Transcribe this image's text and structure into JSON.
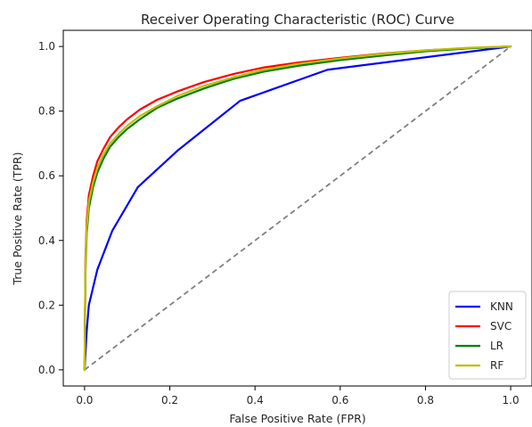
{
  "chart_data": {
    "type": "line",
    "title": "Receiver Operating Characteristic (ROC) Curve",
    "xlabel": "False Positive Rate (FPR)",
    "ylabel": "True Positive Rate (TPR)",
    "xlim": [
      -0.05,
      1.05
    ],
    "ylim": [
      -0.05,
      1.05
    ],
    "xticks": [
      0.0,
      0.2,
      0.4,
      0.6,
      0.8,
      1.0
    ],
    "yticks": [
      0.0,
      0.2,
      0.4,
      0.6,
      0.8,
      1.0
    ],
    "xtick_labels": [
      "0.0",
      "0.2",
      "0.4",
      "0.6",
      "0.8",
      "1.0"
    ],
    "ytick_labels": [
      "0.0",
      "0.2",
      "0.4",
      "0.6",
      "0.8",
      "1.0"
    ],
    "grid": false,
    "legend_position": "lower-right",
    "diagonal": {
      "x": [
        0,
        1
      ],
      "y": [
        0,
        1
      ],
      "color": "#808080",
      "style": "dashed"
    },
    "series": [
      {
        "name": "KNN",
        "color": "#0000ff",
        "x": [
          0,
          0.005,
          0.01,
          0.03,
          0.065,
          0.125,
          0.22,
          0.365,
          0.57,
          1.0
        ],
        "y": [
          0,
          0.12,
          0.2,
          0.31,
          0.43,
          0.565,
          0.68,
          0.832,
          0.928,
          1.0
        ]
      },
      {
        "name": "SVC",
        "color": "#ff0000",
        "x": [
          0,
          0.002,
          0.005,
          0.01,
          0.02,
          0.03,
          0.045,
          0.06,
          0.08,
          0.1,
          0.13,
          0.17,
          0.22,
          0.28,
          0.35,
          0.42,
          0.5,
          0.6,
          0.7,
          0.8,
          0.9,
          1.0
        ],
        "y": [
          0,
          0.34,
          0.46,
          0.54,
          0.6,
          0.645,
          0.685,
          0.72,
          0.75,
          0.775,
          0.805,
          0.835,
          0.862,
          0.89,
          0.915,
          0.935,
          0.95,
          0.965,
          0.978,
          0.988,
          0.995,
          1.0
        ]
      },
      {
        "name": "LR",
        "color": "#008000",
        "x": [
          0,
          0.002,
          0.005,
          0.01,
          0.02,
          0.03,
          0.045,
          0.06,
          0.08,
          0.1,
          0.13,
          0.17,
          0.22,
          0.28,
          0.35,
          0.42,
          0.5,
          0.6,
          0.7,
          0.8,
          0.9,
          1.0
        ],
        "y": [
          0,
          0.3,
          0.42,
          0.5,
          0.565,
          0.61,
          0.655,
          0.69,
          0.72,
          0.745,
          0.775,
          0.81,
          0.84,
          0.87,
          0.9,
          0.922,
          0.94,
          0.958,
          0.972,
          0.985,
          0.994,
          1.0
        ]
      },
      {
        "name": "RF",
        "color": "#bfbf00",
        "x": [
          0,
          0.002,
          0.005,
          0.01,
          0.02,
          0.03,
          0.045,
          0.06,
          0.08,
          0.1,
          0.13,
          0.17,
          0.22,
          0.28,
          0.35,
          0.42,
          0.5,
          0.6,
          0.7,
          0.8,
          0.9,
          1.0
        ],
        "y": [
          0,
          0.32,
          0.44,
          0.52,
          0.58,
          0.625,
          0.668,
          0.7,
          0.73,
          0.755,
          0.785,
          0.815,
          0.848,
          0.878,
          0.905,
          0.928,
          0.946,
          0.963,
          0.977,
          0.988,
          0.996,
          1.0
        ]
      }
    ]
  }
}
